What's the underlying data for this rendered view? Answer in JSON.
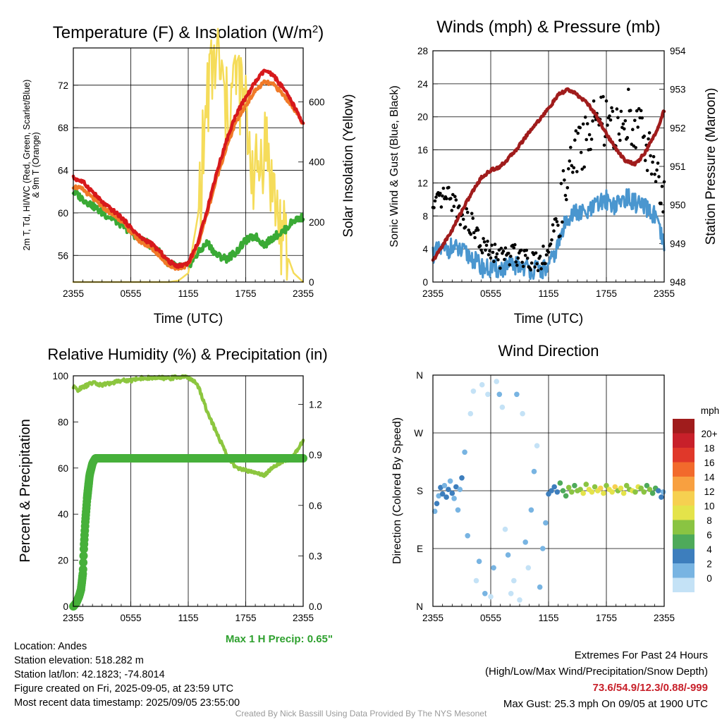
{
  "footer": {
    "location": "Location: Andes",
    "elevation": "Station elevation: 518.282 m",
    "latlon": "Station lat/lon: 42.1823; -74.8014",
    "created": "Figure created on Fri, 2025-09-05, at 23:59 UTC",
    "recent": "Most recent data timestamp: 2025/09/05 23:55:00",
    "extremes_title": "Extremes For Past 24 Hours",
    "extremes_sub": "(High/Low/Max Wind/Precipitation/Snow Depth)",
    "extremes_values": "73.6/54.9/12.3/0.88/-999",
    "max_gust": "Max Gust: 25.3 mph On 09/05 at 1900 UTC",
    "credit": "Created By Nick Bassill Using Data Provided By The NYS Mesonet"
  },
  "colors": {
    "temp_2m": "#d7191c",
    "dewpoint": "#3aaa35",
    "temp_9m": "#f07a28",
    "solar": "#f5dc5a",
    "wind": "#4a96cf",
    "gust": "#000000",
    "pressure": "#a01c1c",
    "rh": "#8cc63f",
    "precip": "#46b03a",
    "max_precip_text": "#2ea02e",
    "extremes_text": "#c8202a"
  },
  "chart_data": [
    {
      "type": "line",
      "title": "Temperature (F) & Insolation (W/m²)",
      "xlabel": "Time (UTC)",
      "ylabel": "2m T, Td, HI/WC (Red, Green, Scarlet/Blue) & 9m T (Orange)",
      "y2label": "Solar Insolation (Yellow)",
      "x_ticks": [
        "2355",
        "0555",
        "1155",
        "1755",
        "2355"
      ],
      "y_ticks": [
        56,
        60,
        64,
        68,
        72
      ],
      "y2_ticks": [
        0,
        200,
        400,
        600
      ],
      "ylim": [
        53.5,
        75.5
      ],
      "y2lim": [
        0,
        780
      ],
      "x_hours": [
        0,
        1,
        2,
        3,
        4,
        5,
        6,
        7,
        8,
        9,
        10,
        11,
        12,
        13,
        14,
        15,
        16,
        17,
        18,
        19,
        20,
        21,
        22,
        23,
        24
      ],
      "series": [
        {
          "name": "2m T (Red)",
          "values": [
            63.3,
            62.9,
            62.0,
            61.0,
            60.3,
            59.6,
            58.6,
            57.7,
            57.2,
            56.4,
            55.4,
            55.0,
            55.3,
            57.2,
            60.4,
            63.9,
            66.8,
            69.3,
            70.8,
            72.3,
            73.4,
            72.8,
            71.6,
            70.1,
            68.4
          ]
        },
        {
          "name": "9m T (Orange)",
          "values": [
            62.5,
            62.2,
            61.4,
            60.6,
            59.9,
            59.3,
            58.2,
            57.3,
            56.8,
            56.0,
            55.0,
            54.8,
            55.1,
            57.0,
            60.1,
            63.4,
            66.2,
            68.6,
            70.1,
            71.5,
            72.3,
            72.0,
            71.0,
            69.9,
            68.3
          ]
        },
        {
          "name": "Td (Green)",
          "values": [
            62.0,
            61.3,
            60.7,
            60.0,
            59.5,
            58.9,
            58.2,
            57.5,
            57.0,
            56.3,
            55.2,
            54.9,
            55.0,
            56.2,
            57.2,
            56.0,
            55.7,
            56.3,
            57.4,
            57.8,
            57.0,
            57.8,
            58.3,
            59.3,
            59.6
          ]
        },
        {
          "name": "Solar Insolation (Yellow)",
          "axis": "y2",
          "values": [
            0,
            0,
            0,
            0,
            0,
            0,
            0,
            0,
            0,
            0,
            0,
            5,
            30,
            220,
            620,
            760,
            560,
            690,
            560,
            330,
            480,
            280,
            120,
            30,
            0
          ]
        }
      ]
    },
    {
      "type": "line",
      "title": "Winds (mph) & Pressure (mb)",
      "xlabel": "Time (UTC)",
      "ylabel": "Sonic Wind & Gust (Blue, Black)",
      "y2label": "Station Pressure (Maroon)",
      "x_ticks": [
        "2355",
        "0555",
        "1155",
        "1755",
        "2355"
      ],
      "y_ticks": [
        0,
        4,
        8,
        12,
        16,
        20,
        24,
        28
      ],
      "y2_ticks": [
        948,
        949,
        950,
        951,
        952,
        953,
        954
      ],
      "ylim": [
        0,
        28
      ],
      "y2lim": [
        948,
        954
      ],
      "x_hours": [
        0,
        1,
        2,
        3,
        4,
        5,
        6,
        7,
        8,
        9,
        10,
        11,
        12,
        13,
        14,
        15,
        16,
        17,
        18,
        19,
        20,
        21,
        22,
        23,
        24
      ],
      "series": [
        {
          "name": "Sonic Wind (Blue)",
          "values": [
            3.5,
            3.8,
            4.2,
            3.6,
            3.0,
            1.8,
            1.5,
            1.6,
            1.9,
            2.1,
            1.6,
            1.4,
            1.7,
            4.5,
            8.0,
            8.4,
            8.2,
            9.3,
            10.0,
            9.2,
            10.3,
            9.6,
            8.9,
            8.1,
            4.2
          ]
        },
        {
          "name": "Gust (Black)",
          "values": [
            8.5,
            10.2,
            10.0,
            8.0,
            7.0,
            4.5,
            3.4,
            3.0,
            3.2,
            3.5,
            2.9,
            2.7,
            3.8,
            7.8,
            12.5,
            16.0,
            17.5,
            20.0,
            19.0,
            18.0,
            20.5,
            19.5,
            17.0,
            14.5,
            9.5
          ]
        },
        {
          "name": "Station Pressure (Maroon)",
          "axis": "y2",
          "values": [
            948.55,
            948.95,
            949.35,
            949.85,
            950.3,
            950.7,
            950.9,
            951.0,
            951.25,
            951.55,
            951.9,
            952.2,
            952.5,
            952.85,
            953.0,
            952.85,
            952.65,
            952.3,
            951.85,
            951.45,
            951.15,
            951.05,
            951.35,
            951.8,
            952.45
          ]
        }
      ]
    },
    {
      "type": "line",
      "title": "Relative Humidity (%) & Precipitation (in)",
      "xlabel": "",
      "ylabel": "Percent & Precipitation",
      "x_ticks": [
        "2355",
        "0555",
        "1155",
        "1755",
        "2355"
      ],
      "y_ticks": [
        0,
        20,
        40,
        60,
        80,
        100
      ],
      "y2_ticks": [
        "0.0",
        "0.3",
        "0.6",
        "0.9",
        "1.2"
      ],
      "ylim": [
        0,
        100
      ],
      "y2lim": [
        0,
        1.37
      ],
      "max_precip_label": "Max 1 H Precip: 0.65\"",
      "rh_x": [
        0,
        0.5,
        1,
        2,
        3,
        4,
        5,
        6,
        7,
        8,
        9,
        10,
        11,
        12,
        13,
        13.7,
        14,
        15,
        16,
        17,
        18,
        19,
        20,
        21,
        22,
        23,
        24
      ],
      "rh_values": [
        95,
        94,
        95,
        97,
        96,
        97,
        98,
        98,
        99,
        99,
        99,
        99,
        99.5,
        99.5,
        96,
        88,
        84,
        75,
        66,
        60,
        59,
        58,
        57,
        61,
        63,
        65,
        72
      ],
      "precip_x": [
        0,
        0.3,
        0.6,
        0.8,
        1.0,
        1.1,
        1.25,
        1.45,
        1.7,
        2.0,
        2.3,
        3.0,
        4.0,
        6.0,
        10.0,
        14.0,
        18.0,
        22.0,
        24.0
      ],
      "precip_values": [
        0.0,
        0.02,
        0.06,
        0.1,
        0.2,
        0.35,
        0.5,
        0.65,
        0.78,
        0.85,
        0.88,
        0.88,
        0.88,
        0.88,
        0.88,
        0.88,
        0.88,
        0.88,
        0.88
      ]
    },
    {
      "type": "scatter",
      "title": "Wind Direction",
      "xlabel": "",
      "ylabel": "Direction (Colored By Speed)",
      "x_ticks": [
        "2355",
        "0555",
        "1155",
        "1755",
        "2355"
      ],
      "y_ticks": [
        "N",
        "E",
        "S",
        "W",
        "N"
      ],
      "ylim": [
        0,
        360
      ],
      "legend_title": "mph",
      "legend_labels": [
        "20+",
        "18",
        "16",
        "14",
        "12",
        "10",
        "8",
        "6",
        "4",
        "2",
        "0"
      ],
      "legend_colors": [
        "#a01c1c",
        "#c8202a",
        "#e0382a",
        "#f26a2c",
        "#f8a040",
        "#f6d050",
        "#e4e34a",
        "#8ac442",
        "#4eaa5a",
        "#3d7ebd",
        "#78b4e2",
        "#c4e2f6"
      ],
      "scatter_x": [
        0.2,
        0.4,
        0.6,
        0.8,
        1.0,
        1.2,
        1.4,
        1.6,
        1.8,
        2.0,
        2.2,
        2.4,
        2.6,
        2.8,
        3.0,
        3.3,
        3.6,
        3.9,
        4.2,
        4.5,
        4.8,
        5.1,
        5.4,
        5.7,
        6.0,
        6.3,
        6.6,
        6.9,
        7.2,
        7.5,
        7.8,
        8.1,
        8.4,
        8.7,
        9.0,
        9.3,
        9.6,
        9.9,
        10.2,
        10.5,
        10.8,
        11.1,
        11.4,
        11.7,
        12.0,
        12.3,
        12.6,
        12.9,
        13.2,
        13.5,
        13.8,
        14.1,
        14.4,
        14.7,
        15.0,
        15.3,
        15.6,
        15.9,
        16.2,
        16.5,
        16.8,
        17.1,
        17.4,
        17.7,
        18.0,
        18.3,
        18.6,
        18.9,
        19.2,
        19.5,
        19.8,
        20.1,
        20.4,
        20.7,
        21.0,
        21.3,
        21.6,
        21.9,
        22.2,
        22.5,
        22.8,
        23.1,
        23.4,
        23.7,
        23.9
      ],
      "scatter_dir": [
        148,
        160,
        172,
        185,
        175,
        188,
        170,
        182,
        195,
        176,
        168,
        186,
        150,
        182,
        200,
        240,
        110,
        300,
        335,
        40,
        70,
        345,
        20,
        330,
        15,
        60,
        350,
        330,
        310,
        120,
        80,
        20,
        40,
        330,
        10,
        300,
        100,
        60,
        150,
        210,
        250,
        30,
        90,
        130,
        175,
        180,
        186,
        178,
        192,
        180,
        172,
        185,
        178,
        188,
        180,
        182,
        176,
        190,
        182,
        178,
        186,
        180,
        184,
        176,
        188,
        182,
        178,
        186,
        180,
        184,
        176,
        188,
        182,
        180,
        178,
        186,
        184,
        178,
        188,
        182,
        176,
        184,
        180,
        170,
        178
      ],
      "scatter_speed": [
        3,
        4,
        3,
        5,
        4,
        3,
        4,
        5,
        3,
        4,
        3,
        4,
        2,
        3,
        4,
        2,
        2,
        1,
        1,
        1,
        2,
        1,
        2,
        1,
        1,
        2,
        1,
        2,
        1,
        1,
        2,
        1,
        1,
        2,
        1,
        1,
        2,
        1,
        2,
        2,
        1,
        2,
        2,
        3,
        4,
        4,
        5,
        4,
        6,
        7,
        7,
        8,
        8,
        7,
        9,
        8,
        10,
        9,
        11,
        10,
        9,
        11,
        12,
        10,
        9,
        11,
        10,
        12,
        9,
        10,
        11,
        9,
        8,
        10,
        9,
        11,
        8,
        9,
        7,
        8,
        6,
        7,
        5,
        4,
        3
      ]
    }
  ]
}
